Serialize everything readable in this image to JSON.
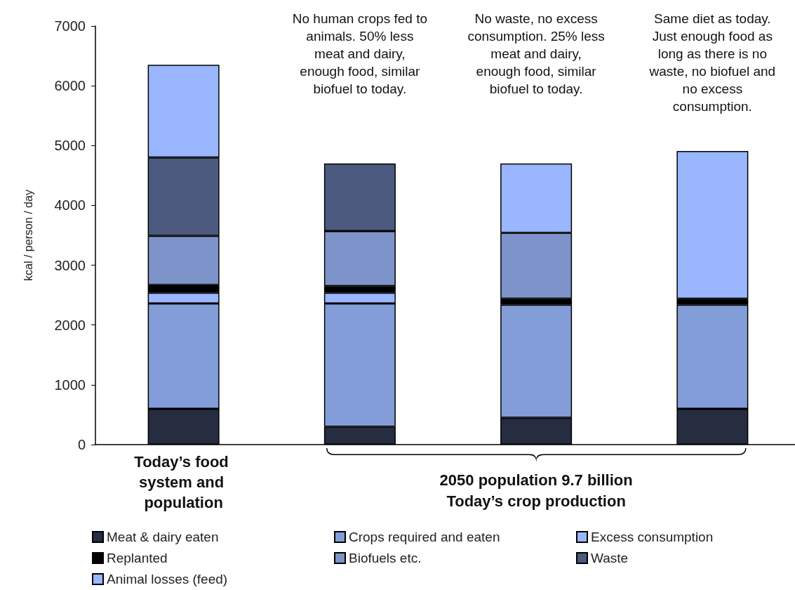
{
  "chart_data": {
    "type": "bar",
    "stacked": true,
    "ylabel": "kcal / person / day",
    "categories": [
      "Today’s food system and population",
      null,
      null,
      null
    ],
    "series": [
      {
        "name": "Meat & dairy eaten",
        "color": "#262d40",
        "values": [
          600,
          300,
          450,
          600
        ]
      },
      {
        "name": "Crops required and eaten",
        "color": "#829dd7",
        "values": [
          1760,
          2060,
          1890,
          1740
        ]
      },
      {
        "name": "Excess consumption",
        "color": "#99b6fe",
        "values": [
          180,
          180,
          null,
          null
        ]
      },
      {
        "name": "Replanted",
        "color": "#000000",
        "values": [
          130,
          110,
          100,
          100
        ]
      },
      {
        "name": "Biofuels etc.",
        "color": "#7d93c9",
        "values": [
          820,
          920,
          1100,
          null
        ]
      },
      {
        "name": "Waste",
        "color": "#4c5a7f",
        "values": [
          1310,
          1130,
          null,
          null
        ]
      },
      {
        "name": "Animal losses (feed)",
        "color": "#99b6fe",
        "values": [
          1550,
          null,
          1160,
          2470
        ]
      }
    ],
    "ylim": [
      0,
      7000
    ],
    "yticks": [
      0,
      1000,
      2000,
      3000,
      4000,
      5000,
      6000,
      7000
    ],
    "grid": false,
    "legend": "bottom",
    "annotations": [
      "No human crops fed to animals. 50% less meat and dairy, enough food, similar biofuel to today.",
      "No waste, no excess consumption. 25% less meat and dairy, enough food, similar biofuel to today.",
      "Same diet as today. Just enough food as long as there is no waste, no biofuel and no excess consumption.",
      "2050 population 9.7 billion\nToday’s crop production"
    ]
  }
}
